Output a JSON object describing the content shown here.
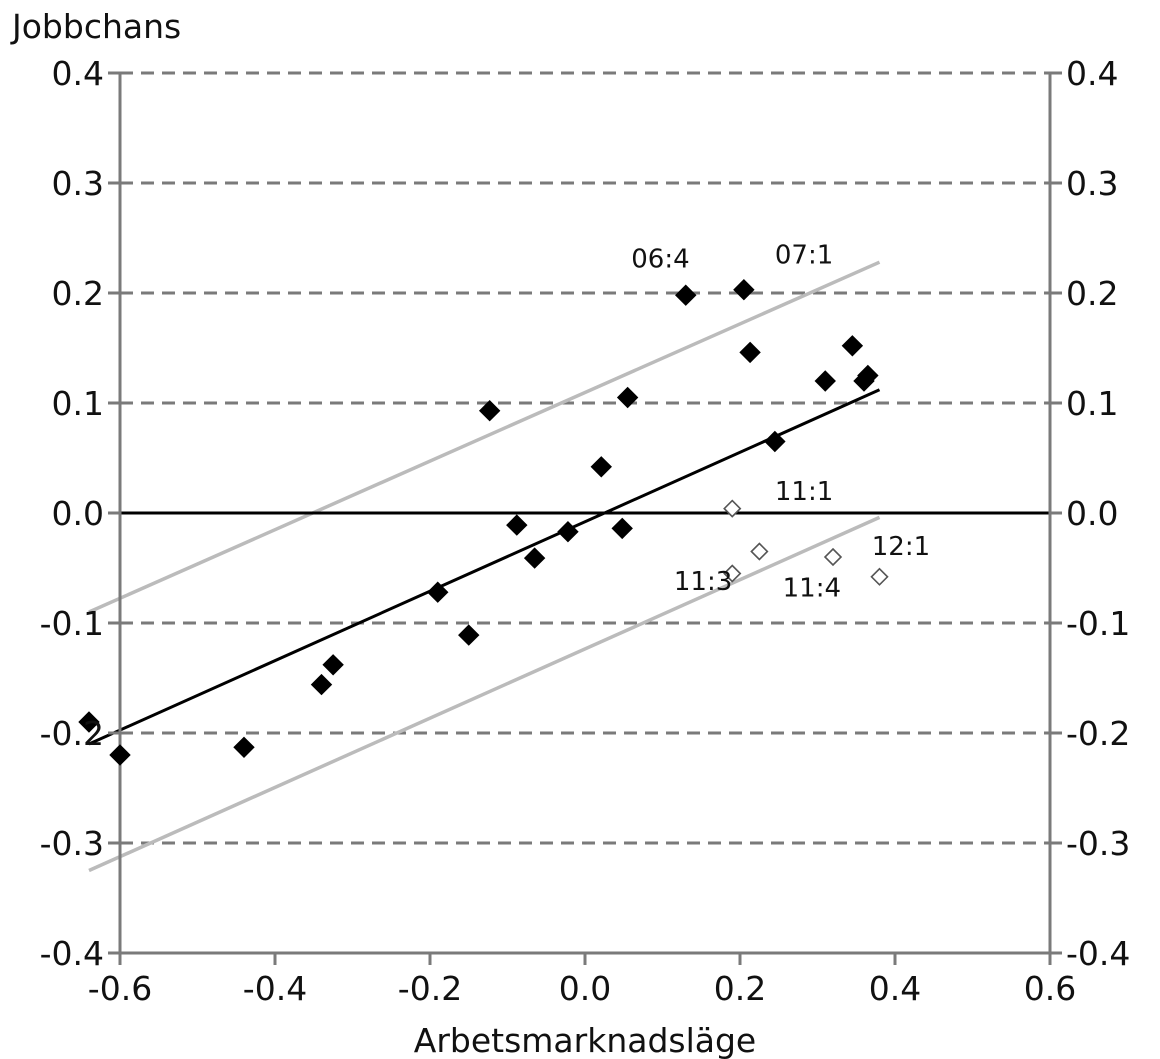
{
  "chart_data": {
    "type": "scatter",
    "ylabel": "Jobbchans",
    "xlabel": "Arbetsmarknadsläge",
    "xlim": [
      -0.6,
      0.6
    ],
    "ylim": [
      -0.4,
      0.4
    ],
    "x_ticks": [
      "-0.6",
      "-0.4",
      "-0.2",
      "0.0",
      "0.2",
      "0.4",
      "0.6"
    ],
    "y_ticks": [
      "-0.4",
      "-0.3",
      "-0.2",
      "-0.1",
      "0.0",
      "0.1",
      "0.2",
      "0.3",
      "0.4"
    ],
    "grid": "dashed horizontal",
    "series": [
      {
        "marker": "filled-diamond",
        "color": "#000000",
        "points": [
          {
            "x": -0.64,
            "y": -0.19
          },
          {
            "x": -0.6,
            "y": -0.22
          },
          {
            "x": -0.44,
            "y": -0.213
          },
          {
            "x": -0.34,
            "y": -0.156
          },
          {
            "x": -0.325,
            "y": -0.138
          },
          {
            "x": -0.19,
            "y": -0.072
          },
          {
            "x": -0.15,
            "y": -0.111
          },
          {
            "x": -0.123,
            "y": 0.093
          },
          {
            "x": -0.088,
            "y": -0.011
          },
          {
            "x": -0.065,
            "y": -0.041
          },
          {
            "x": -0.022,
            "y": -0.017
          },
          {
            "x": 0.021,
            "y": 0.042
          },
          {
            "x": 0.048,
            "y": -0.014
          },
          {
            "x": 0.055,
            "y": 0.105
          },
          {
            "x": 0.13,
            "y": 0.198
          },
          {
            "x": 0.205,
            "y": 0.203
          },
          {
            "x": 0.213,
            "y": 0.146
          },
          {
            "x": 0.245,
            "y": 0.065
          },
          {
            "x": 0.31,
            "y": 0.12
          },
          {
            "x": 0.345,
            "y": 0.152
          },
          {
            "x": 0.36,
            "y": 0.12
          },
          {
            "x": 0.365,
            "y": 0.125
          }
        ]
      },
      {
        "marker": "open-diamond",
        "color": "#555555",
        "points": [
          {
            "x": 0.19,
            "y": 0.004
          },
          {
            "x": 0.19,
            "y": -0.055
          },
          {
            "x": 0.225,
            "y": -0.035
          },
          {
            "x": 0.32,
            "y": -0.04
          },
          {
            "x": 0.38,
            "y": -0.058
          }
        ]
      }
    ],
    "lines": [
      {
        "role": "regression",
        "color": "#000000",
        "x1": -0.64,
        "y1": -0.21,
        "x2": 0.38,
        "y2": 0.112
      },
      {
        "role": "upper-band",
        "color": "#bbbbbb",
        "x1": -0.64,
        "y1": -0.09,
        "x2": 0.38,
        "y2": 0.228
      },
      {
        "role": "lower-band",
        "color": "#bbbbbb",
        "x1": -0.64,
        "y1": -0.325,
        "x2": 0.38,
        "y2": -0.004
      },
      {
        "role": "zero-line",
        "color": "#000000",
        "x1": -0.6,
        "y1": 0.0,
        "x2": 0.6,
        "y2": 0.0
      }
    ],
    "annotations": [
      {
        "text": "06:4",
        "x": 0.135,
        "y": 0.223,
        "anchor": "end"
      },
      {
        "text": "07:1",
        "x": 0.245,
        "y": 0.227,
        "anchor": "start"
      },
      {
        "text": "11:1",
        "x": 0.245,
        "y": 0.012,
        "anchor": "start"
      },
      {
        "text": "11:3",
        "x": 0.19,
        "y": -0.07,
        "anchor": "end"
      },
      {
        "text": "11:4",
        "x": 0.255,
        "y": -0.076,
        "anchor": "start"
      },
      {
        "text": "12:1",
        "x": 0.37,
        "y": -0.038,
        "anchor": "start"
      }
    ]
  }
}
